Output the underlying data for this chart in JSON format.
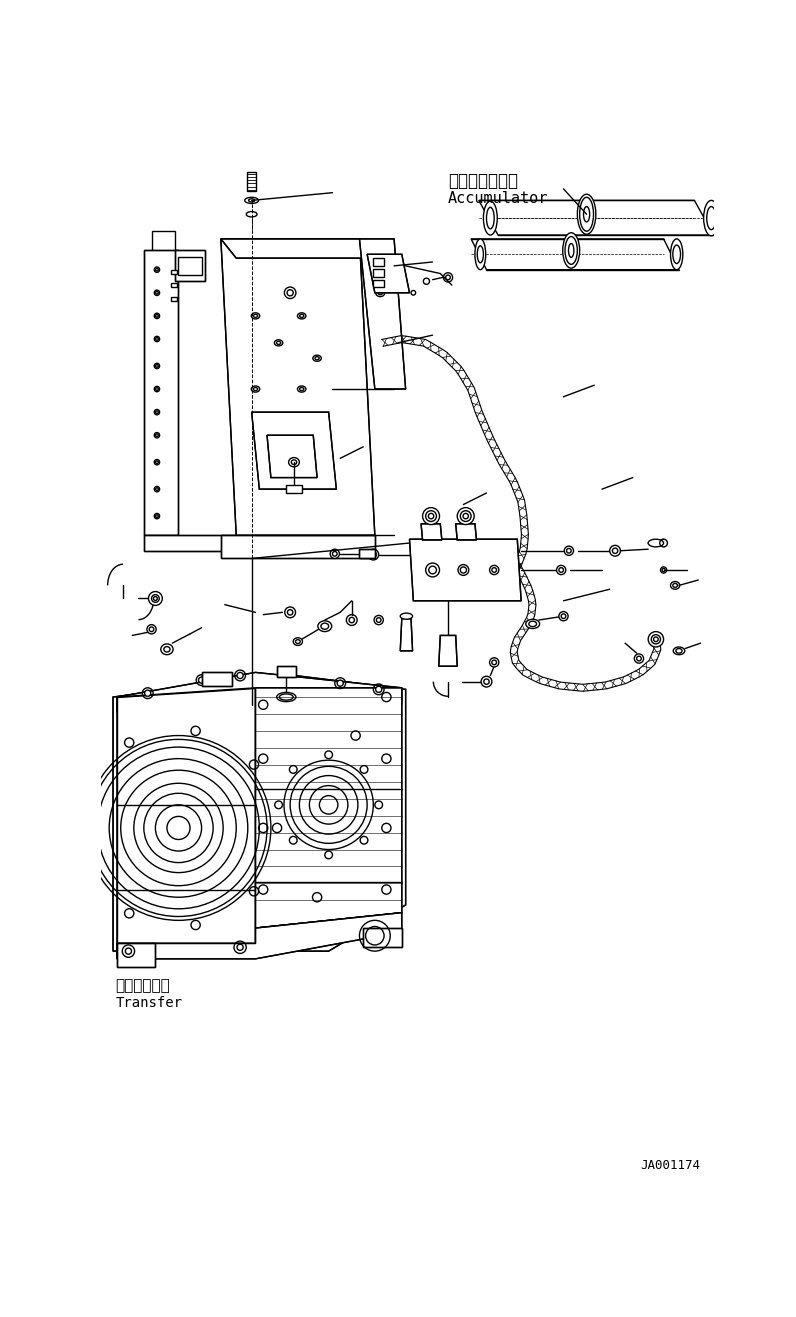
{
  "bg_color": "#ffffff",
  "line_color": "#000000",
  "lw": 1.0,
  "label_accumulator_jp": "アキュムレータ",
  "label_accumulator_en": "Accumulator",
  "label_transfer_jp": "トランスファ",
  "label_transfer_en": "Transfer",
  "label_id": "JA001174",
  "figsize": [
    7.96,
    13.17
  ],
  "dpi": 100
}
